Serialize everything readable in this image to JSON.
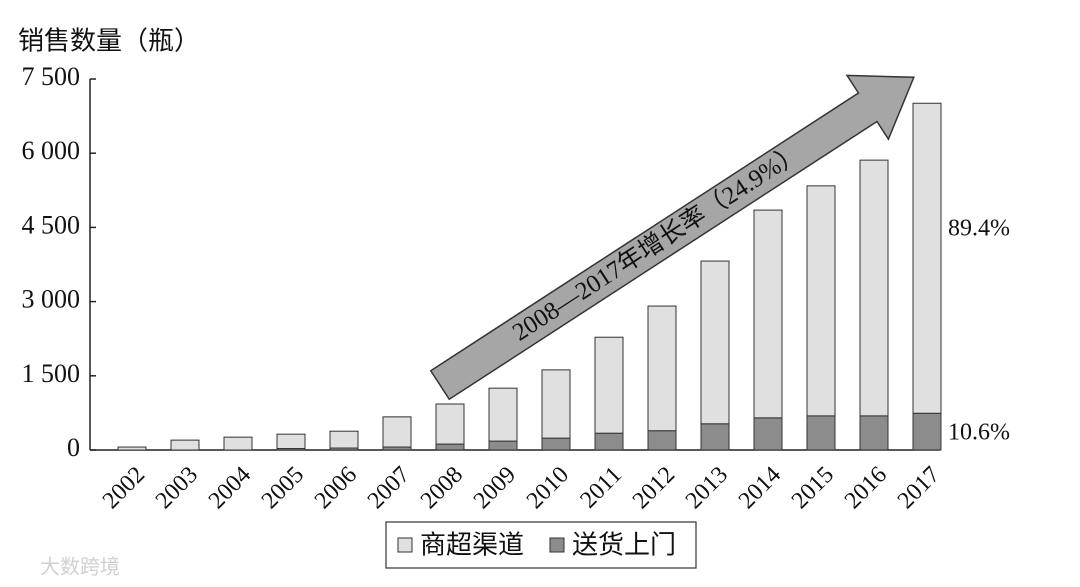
{
  "chart_data": {
    "type": "bar",
    "stacked": true,
    "ylabel": "销售数量（瓶）",
    "categories": [
      "2002",
      "2003",
      "2004",
      "2005",
      "2006",
      "2007",
      "2008",
      "2009",
      "2010",
      "2011",
      "2012",
      "2013",
      "2014",
      "2015",
      "2016",
      "2017"
    ],
    "series": [
      {
        "name": "商超渠道",
        "color": "#e0e0e0",
        "values": [
          60,
          200,
          260,
          290,
          340,
          610,
          810,
          1070,
          1380,
          1940,
          2520,
          3290,
          4200,
          4650,
          5170,
          6267
        ]
      },
      {
        "name": "送货上门",
        "color": "#8c8c8c",
        "values": [
          0,
          0,
          0,
          30,
          40,
          60,
          120,
          180,
          240,
          340,
          390,
          530,
          650,
          690,
          690,
          743
        ]
      }
    ],
    "ylim": [
      0,
      7500
    ],
    "yticks": [
      0,
      {
        "value": 1500,
        "label": "1 500"
      },
      {
        "value": 3000,
        "label": "3 000"
      },
      {
        "value": 4500,
        "label": "4 500"
      },
      {
        "value": 6000,
        "label": "6 000"
      },
      {
        "value": 7500,
        "label": "7 500"
      }
    ],
    "annotations": [
      "2008—2017年增长率（24.9%）",
      "89.4%",
      "10.6%"
    ],
    "watermark": "大数跨境",
    "legend": "bottom"
  }
}
